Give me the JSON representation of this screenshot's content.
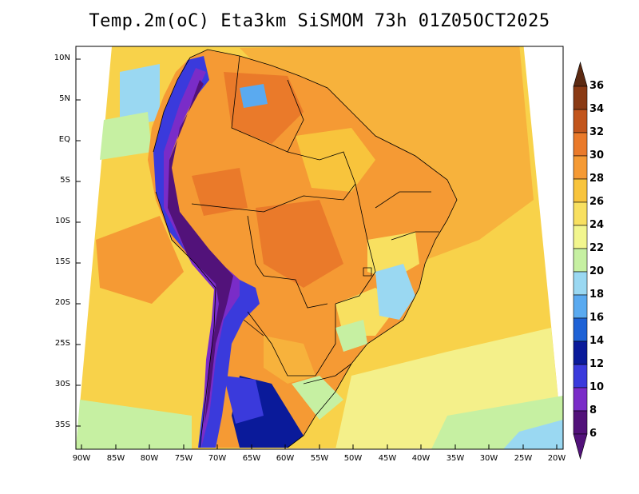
{
  "title": "Temp.2m(oC) Eta3km SiSMOM 73h 01Z05OCT2025",
  "map": {
    "y_axis": [
      "10N",
      "5N",
      "EQ",
      "5S",
      "10S",
      "15S",
      "20S",
      "25S",
      "30S",
      "35S"
    ],
    "x_axis": [
      "90W",
      "85W",
      "80W",
      "75W",
      "70W",
      "65W",
      "60W",
      "55W",
      "50W",
      "45W",
      "40W",
      "35W",
      "30W",
      "25W",
      "20W"
    ]
  },
  "colorbar": {
    "labels": [
      "36",
      "34",
      "32",
      "30",
      "28",
      "26",
      "24",
      "22",
      "20",
      "18",
      "16",
      "14",
      "12",
      "10",
      "8",
      "6"
    ],
    "colors": [
      "#5c2a12",
      "#8a3a14",
      "#c2551c",
      "#ea7a2a",
      "#f59a34",
      "#f8c43c",
      "#f8e060",
      "#f2f68e",
      "#c6f0a2",
      "#9ad8f2",
      "#5aaaf0",
      "#1e62d6",
      "#0a1a9a",
      "#3a3adc",
      "#7a2cc8",
      "#52127a"
    ]
  }
}
